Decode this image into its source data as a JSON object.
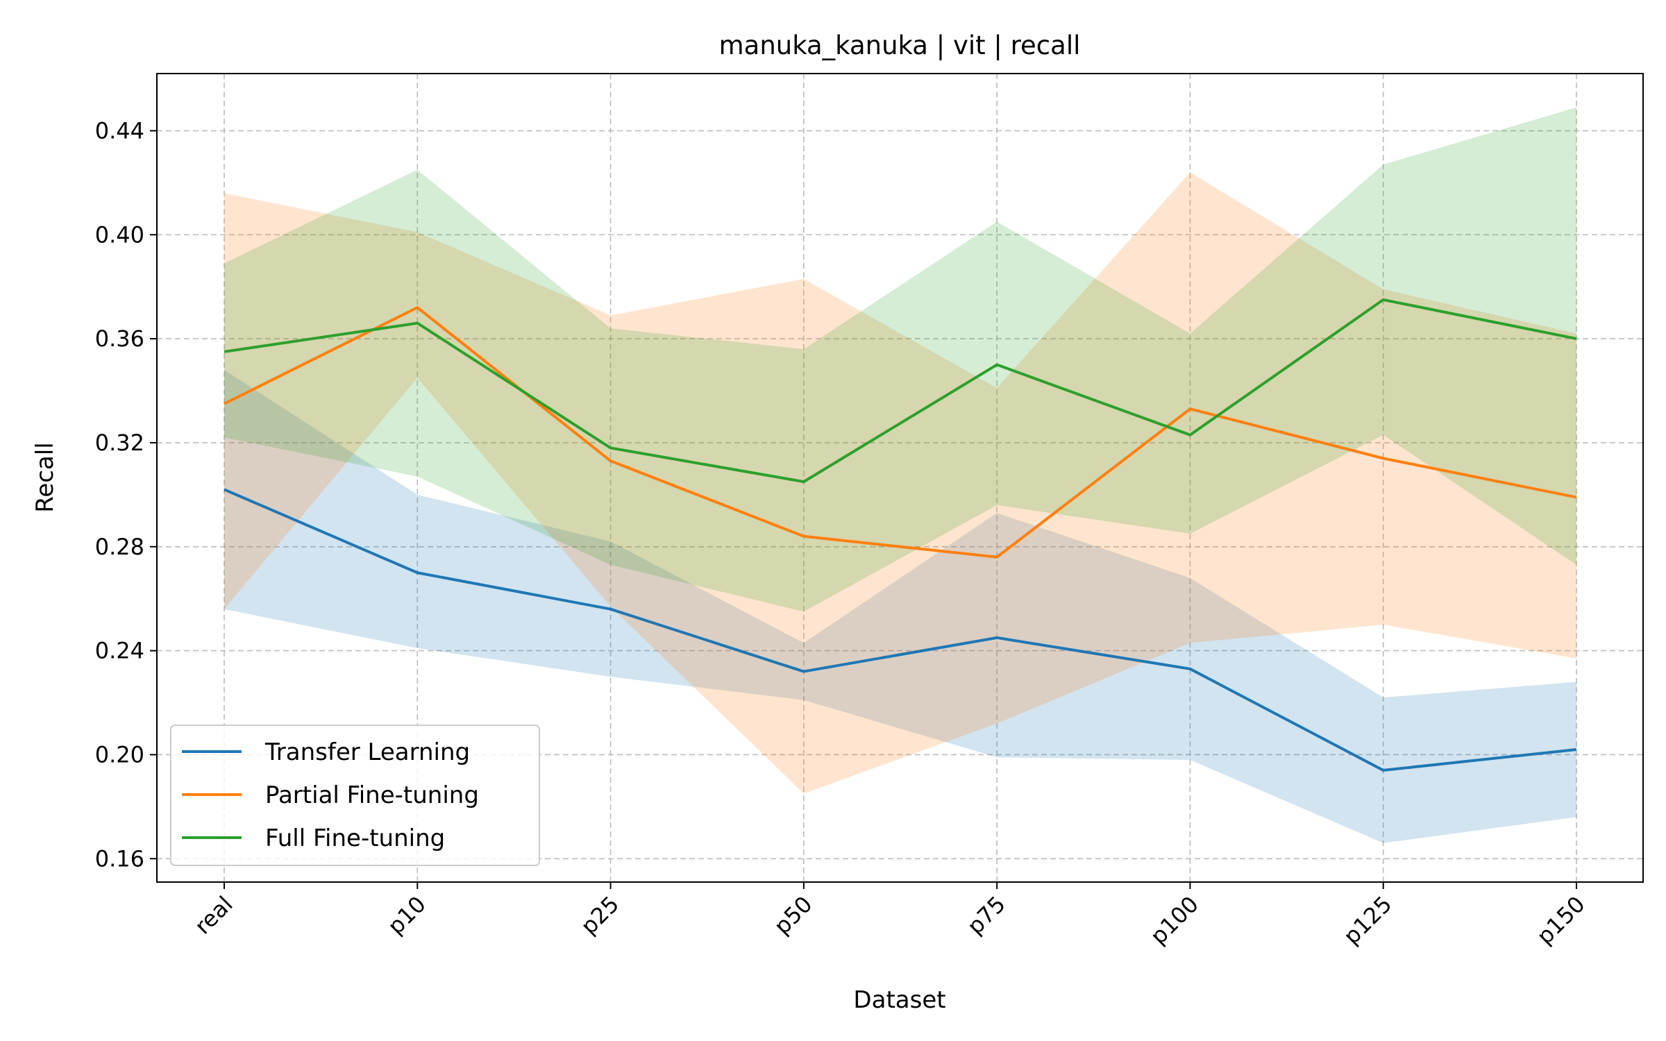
{
  "chart_data": {
    "type": "line",
    "title": "manuka_kanuka | vit | recall",
    "xlabel": "Dataset",
    "ylabel": "Recall",
    "categories": [
      "real",
      "p10",
      "p25",
      "p50",
      "p75",
      "p100",
      "p125",
      "p150"
    ],
    "ylim": [
      0.151,
      0.462
    ],
    "yticks": [
      0.16,
      0.2,
      0.24,
      0.28,
      0.32,
      0.36,
      0.4,
      0.44
    ],
    "ytick_labels": [
      "0.16",
      "0.20",
      "0.24",
      "0.28",
      "0.32",
      "0.36",
      "0.40",
      "0.44"
    ],
    "grid": true,
    "legend_position": "lower-left",
    "series": [
      {
        "name": "Transfer Learning",
        "color": "#1f77b4",
        "values": [
          0.302,
          0.27,
          0.256,
          0.232,
          0.245,
          0.233,
          0.194,
          0.202
        ],
        "lower": [
          0.256,
          0.241,
          0.23,
          0.221,
          0.199,
          0.198,
          0.166,
          0.176
        ],
        "upper": [
          0.348,
          0.3,
          0.282,
          0.243,
          0.293,
          0.268,
          0.222,
          0.228
        ]
      },
      {
        "name": "Partial Fine-tuning",
        "color": "#ff7f0e",
        "values": [
          0.335,
          0.372,
          0.313,
          0.284,
          0.276,
          0.333,
          0.314,
          0.299
        ],
        "lower": [
          0.256,
          0.345,
          0.257,
          0.185,
          0.212,
          0.243,
          0.25,
          0.237
        ],
        "upper": [
          0.416,
          0.401,
          0.369,
          0.383,
          0.341,
          0.424,
          0.379,
          0.362
        ]
      },
      {
        "name": "Full Fine-tuning",
        "color": "#2ca02c",
        "values": [
          0.355,
          0.366,
          0.318,
          0.305,
          0.35,
          0.323,
          0.375,
          0.36
        ],
        "lower": [
          0.322,
          0.307,
          0.273,
          0.255,
          0.296,
          0.285,
          0.323,
          0.273
        ],
        "upper": [
          0.389,
          0.425,
          0.364,
          0.356,
          0.405,
          0.362,
          0.427,
          0.449
        ]
      }
    ]
  }
}
